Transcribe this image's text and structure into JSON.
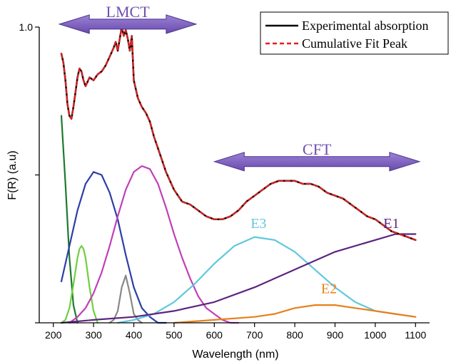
{
  "chart_data": {
    "type": "line",
    "xlabel": "Wavelength (nm)",
    "ylabel": "F(R) (a.u)",
    "xlim": [
      165,
      1135
    ],
    "ylim": [
      0,
      1.0
    ],
    "x_ticks": [
      "200",
      "300",
      "400",
      "500",
      "600",
      "700",
      "800",
      "900",
      "1000",
      "1100"
    ],
    "x_tick_values": [
      200,
      300,
      400,
      500,
      600,
      700,
      800,
      900,
      1000,
      1100
    ],
    "y_ticks": [
      "1.0"
    ],
    "y_tick_values": [
      1.0
    ],
    "legend": {
      "position": "top-right",
      "entries": [
        {
          "label": "Experimental absorption",
          "color": "#000000",
          "dash": "solid"
        },
        {
          "label": "Cumulative Fit Peak",
          "color": "#e02020",
          "dash": "dashed"
        }
      ]
    },
    "annotations": [
      {
        "text": "LMCT",
        "color": "#7050b0",
        "arrow_from": 215,
        "arrow_to": 555,
        "y": 1.01
      },
      {
        "text": "CFT",
        "color": "#7050b0",
        "arrow_from": 600,
        "arrow_to": 1110,
        "y": 0.545
      }
    ],
    "series": [
      {
        "name": "Experimental absorption",
        "color": "#000000",
        "width": 2.5,
        "x": [
          220,
          225,
          230,
          235,
          240,
          245,
          250,
          255,
          260,
          265,
          270,
          275,
          280,
          290,
          300,
          310,
          320,
          330,
          340,
          350,
          355,
          360,
          365,
          370,
          375,
          380,
          385,
          390,
          395,
          400,
          410,
          420,
          430,
          440,
          450,
          460,
          470,
          480,
          500,
          520,
          540,
          560,
          580,
          600,
          620,
          640,
          660,
          680,
          700,
          720,
          740,
          760,
          780,
          800,
          820,
          840,
          860,
          880,
          900,
          920,
          940,
          960,
          980,
          1000,
          1020,
          1040,
          1060,
          1080,
          1100
        ],
        "y": [
          0.91,
          0.88,
          0.82,
          0.74,
          0.7,
          0.69,
          0.73,
          0.78,
          0.83,
          0.86,
          0.85,
          0.82,
          0.8,
          0.83,
          0.82,
          0.84,
          0.85,
          0.87,
          0.9,
          0.93,
          0.95,
          0.92,
          0.96,
          1.0,
          0.97,
          0.99,
          0.96,
          0.92,
          0.97,
          0.82,
          0.76,
          0.73,
          0.71,
          0.68,
          0.63,
          0.59,
          0.55,
          0.51,
          0.45,
          0.41,
          0.4,
          0.38,
          0.36,
          0.35,
          0.35,
          0.36,
          0.38,
          0.41,
          0.43,
          0.45,
          0.47,
          0.48,
          0.48,
          0.48,
          0.47,
          0.47,
          0.46,
          0.44,
          0.43,
          0.42,
          0.4,
          0.38,
          0.36,
          0.35,
          0.33,
          0.31,
          0.3,
          0.29,
          0.28
        ]
      },
      {
        "name": "Cumulative Fit Peak",
        "color": "#e02020",
        "width": 2.2,
        "dash": "6,4",
        "x": [
          220,
          225,
          230,
          235,
          240,
          245,
          250,
          255,
          260,
          265,
          270,
          275,
          280,
          290,
          300,
          310,
          320,
          330,
          340,
          350,
          355,
          360,
          365,
          370,
          375,
          380,
          385,
          390,
          395,
          400,
          410,
          420,
          430,
          440,
          450,
          460,
          470,
          480,
          500,
          520,
          540,
          560,
          580,
          600,
          620,
          640,
          660,
          680,
          700,
          720,
          740,
          760,
          780,
          800,
          820,
          840,
          860,
          880,
          900,
          920,
          940,
          960,
          980,
          1000,
          1020,
          1040,
          1060,
          1080,
          1100
        ],
        "y": [
          0.91,
          0.88,
          0.82,
          0.74,
          0.7,
          0.69,
          0.73,
          0.78,
          0.83,
          0.86,
          0.85,
          0.82,
          0.8,
          0.83,
          0.82,
          0.84,
          0.85,
          0.87,
          0.9,
          0.93,
          0.95,
          0.92,
          0.96,
          1.0,
          0.97,
          0.99,
          0.96,
          0.92,
          0.97,
          0.82,
          0.76,
          0.73,
          0.71,
          0.68,
          0.63,
          0.59,
          0.55,
          0.51,
          0.45,
          0.41,
          0.4,
          0.38,
          0.36,
          0.35,
          0.35,
          0.36,
          0.38,
          0.41,
          0.43,
          0.45,
          0.47,
          0.48,
          0.48,
          0.48,
          0.47,
          0.47,
          0.46,
          0.44,
          0.43,
          0.42,
          0.4,
          0.38,
          0.36,
          0.35,
          0.33,
          0.31,
          0.3,
          0.29,
          0.28
        ]
      },
      {
        "color": "#1e7a2e",
        "width": 2.2,
        "x": [
          220,
          230,
          240,
          250,
          260
        ],
        "y": [
          0.7,
          0.47,
          0.22,
          0.06,
          0.0
        ]
      },
      {
        "color": "#6ed040",
        "width": 2.2,
        "x": [
          220,
          230,
          240,
          250,
          260,
          265,
          270,
          275,
          280,
          290,
          300,
          310
        ],
        "y": [
          0.0,
          0.01,
          0.05,
          0.13,
          0.22,
          0.25,
          0.26,
          0.25,
          0.22,
          0.12,
          0.04,
          0.0
        ]
      },
      {
        "color": "#2c3ea8",
        "width": 2.2,
        "x": [
          220,
          240,
          260,
          280,
          300,
          320,
          340,
          360,
          380,
          400,
          420,
          440,
          460,
          480
        ],
        "y": [
          0.14,
          0.26,
          0.38,
          0.47,
          0.51,
          0.5,
          0.44,
          0.35,
          0.23,
          0.12,
          0.05,
          0.02,
          0.0,
          0.0
        ]
      },
      {
        "color": "#888888",
        "width": 2.2,
        "x": [
          340,
          350,
          360,
          370,
          380,
          390,
          400,
          410,
          420
        ],
        "y": [
          0.0,
          0.01,
          0.04,
          0.12,
          0.16,
          0.1,
          0.03,
          0.01,
          0.0
        ]
      },
      {
        "color": "#c040b8",
        "width": 2.2,
        "x": [
          240,
          260,
          280,
          300,
          320,
          340,
          360,
          380,
          400,
          420,
          440,
          460,
          480,
          500,
          520,
          540,
          560,
          580,
          600,
          620,
          640,
          660
        ],
        "y": [
          0.0,
          0.02,
          0.05,
          0.1,
          0.17,
          0.26,
          0.36,
          0.45,
          0.51,
          0.53,
          0.52,
          0.47,
          0.39,
          0.3,
          0.22,
          0.15,
          0.09,
          0.05,
          0.03,
          0.01,
          0.0,
          0.0
        ]
      },
      {
        "name": "E3",
        "color": "#60c8dc",
        "width": 2.2,
        "x": [
          360,
          400,
          450,
          500,
          550,
          600,
          650,
          700,
          750,
          800,
          850,
          900,
          950,
          1000,
          1050,
          1100
        ],
        "y": [
          0.0,
          0.01,
          0.03,
          0.07,
          0.13,
          0.2,
          0.26,
          0.29,
          0.28,
          0.24,
          0.18,
          0.12,
          0.07,
          0.04,
          0.03,
          0.02
        ]
      },
      {
        "name": "E1",
        "color": "#5c2480",
        "width": 2.2,
        "x": [
          220,
          300,
          400,
          500,
          600,
          700,
          800,
          900,
          1000,
          1050,
          1100
        ],
        "y": [
          0.0,
          0.01,
          0.02,
          0.04,
          0.07,
          0.12,
          0.18,
          0.24,
          0.28,
          0.3,
          0.3
        ]
      },
      {
        "name": "E2",
        "color": "#e8801a",
        "width": 2.2,
        "x": [
          500,
          600,
          700,
          750,
          800,
          850,
          880,
          900,
          950,
          1000,
          1050,
          1100
        ],
        "y": [
          0.0,
          0.01,
          0.02,
          0.03,
          0.05,
          0.06,
          0.06,
          0.06,
          0.05,
          0.04,
          0.03,
          0.02
        ]
      }
    ],
    "curve_labels": [
      {
        "text": "E3",
        "color": "#60c8dc",
        "x": 710,
        "y": 0.32
      },
      {
        "text": "E1",
        "color": "#5c2480",
        "x": 1040,
        "y": 0.32
      },
      {
        "text": "E2",
        "color": "#e8801a",
        "x": 885,
        "y": 0.1
      }
    ]
  }
}
